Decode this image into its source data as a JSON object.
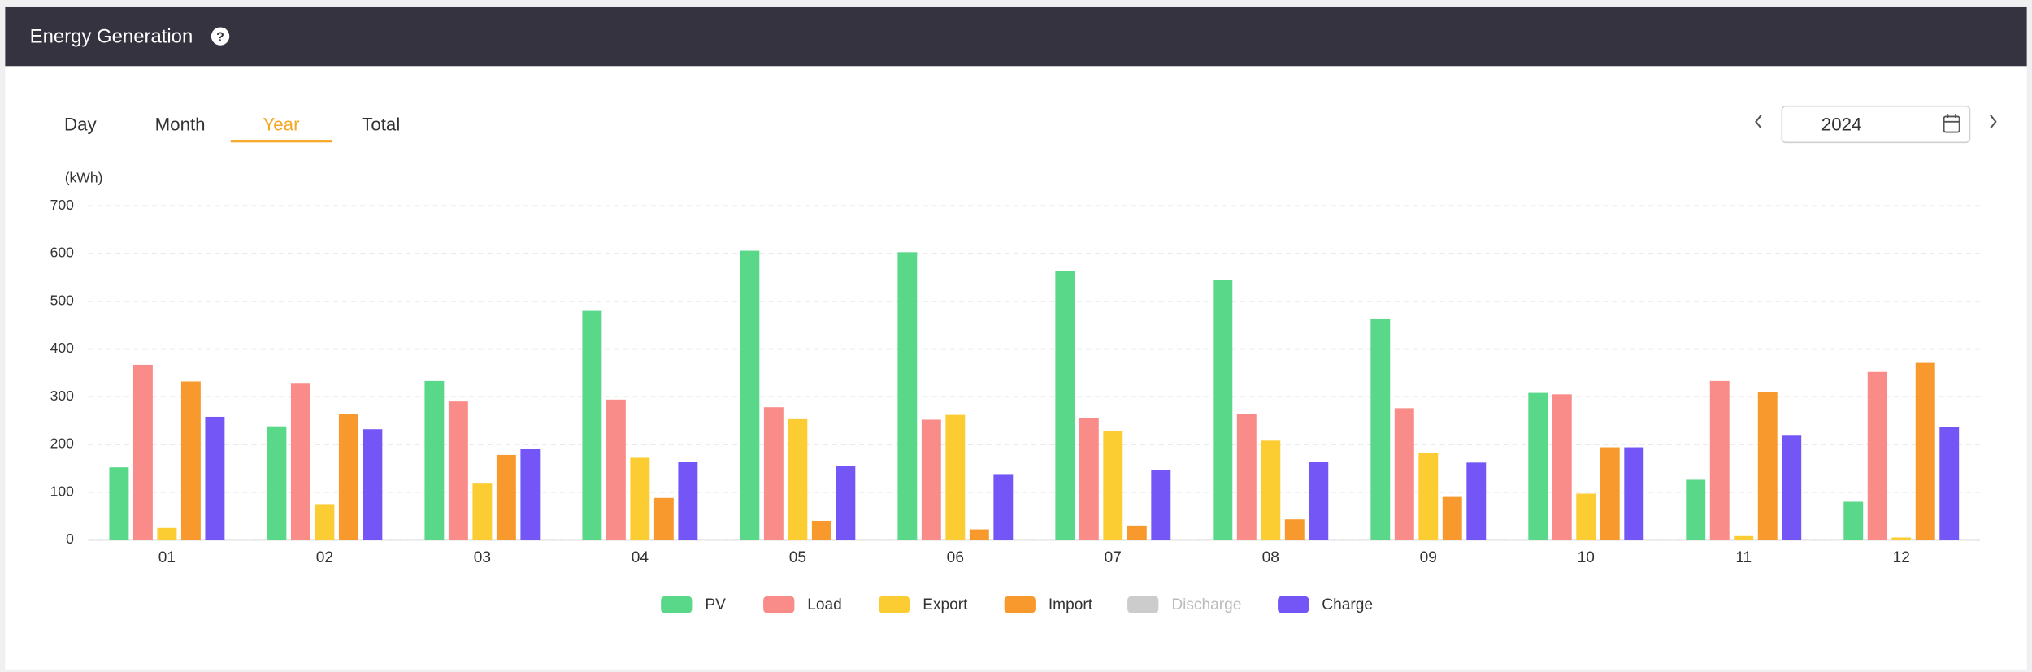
{
  "header": {
    "title": "Energy Generation",
    "help": "?"
  },
  "tabs": {
    "items": [
      "Day",
      "Month",
      "Year",
      "Total"
    ],
    "active": 2
  },
  "date_picker": {
    "value": "2024"
  },
  "chart_data": {
    "type": "bar",
    "y_label": "(kWh)",
    "categories": [
      "01",
      "02",
      "03",
      "04",
      "05",
      "06",
      "07",
      "08",
      "09",
      "10",
      "11",
      "12"
    ],
    "series": [
      {
        "name": "PV",
        "color": "#5ad88a",
        "values": [
          152,
          238,
          333,
          480,
          606,
          603,
          564,
          544,
          464,
          308,
          126,
          80
        ]
      },
      {
        "name": "Load",
        "color": "#f98b88",
        "values": [
          367,
          329,
          290,
          294,
          278,
          252,
          255,
          264,
          276,
          305,
          333,
          352
        ]
      },
      {
        "name": "Export",
        "color": "#fbcd33",
        "values": [
          25,
          75,
          118,
          172,
          253,
          262,
          229,
          208,
          183,
          97,
          8,
          5
        ]
      },
      {
        "name": "Import",
        "color": "#f8992e",
        "values": [
          332,
          263,
          178,
          88,
          40,
          22,
          30,
          43,
          90,
          194,
          309,
          371
        ]
      },
      {
        "name": "Discharge",
        "color": "#cccccc",
        "hidden": true,
        "values": [
          null,
          null,
          null,
          null,
          null,
          null,
          null,
          null,
          null,
          null,
          null,
          null
        ]
      },
      {
        "name": "Charge",
        "color": "#7356f5",
        "values": [
          258,
          232,
          190,
          164,
          155,
          138,
          147,
          163,
          162,
          194,
          220,
          236
        ]
      }
    ],
    "ylim": [
      0,
      700
    ],
    "yticks": [
      0,
      100,
      200,
      300,
      400,
      500,
      600,
      700
    ],
    "grid": true,
    "legend": "bottom"
  }
}
